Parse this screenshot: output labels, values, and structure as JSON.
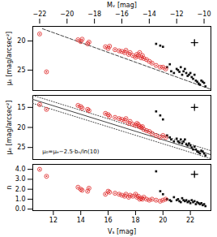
{
  "chart_data": [
    {
      "type": "scatter",
      "x2label": "Mᵥ [mag]",
      "x2lim": [
        -22.5,
        -9.5
      ],
      "x2ticks": [
        -22,
        -20,
        -18,
        -16,
        -14,
        -12,
        -10
      ],
      "ylabel": "μₛ [mag/arcsec²]",
      "xlim": [
        10.5,
        23.5
      ],
      "ylim": [
        28.5,
        17.5
      ],
      "yticks": [
        20,
        25
      ],
      "grid": false,
      "series": [
        {
          "type": "scatter",
          "marker": "square",
          "color": "#111111",
          "values": [
            [
              19.5,
              20.5
            ],
            [
              19.8,
              20.8
            ],
            [
              20.0,
              21.0
            ],
            [
              20.3,
              24.5
            ],
            [
              20.5,
              24.0
            ],
            [
              20.6,
              25.2
            ],
            [
              20.8,
              25.5
            ],
            [
              21.0,
              24.8
            ],
            [
              21.1,
              25.0
            ],
            [
              21.2,
              25.3
            ],
            [
              21.3,
              24.5
            ],
            [
              21.4,
              25.8
            ],
            [
              21.5,
              25.2
            ],
            [
              21.6,
              24.8
            ],
            [
              21.7,
              25.5
            ],
            [
              21.8,
              26.0
            ],
            [
              21.9,
              25.8
            ],
            [
              22.0,
              25.5
            ],
            [
              22.1,
              26.2
            ],
            [
              22.2,
              26.5
            ],
            [
              22.3,
              25.8
            ],
            [
              22.4,
              26.8
            ],
            [
              22.5,
              27.0
            ],
            [
              22.6,
              27.3
            ],
            [
              22.7,
              27.5
            ],
            [
              22.8,
              26.8
            ],
            [
              22.9,
              27.0
            ],
            [
              23.0,
              27.2
            ],
            [
              23.1,
              27.8
            ]
          ]
        },
        {
          "type": "scatter",
          "marker": "circle",
          "color": "#dd2222",
          "values": [
            [
              11.0,
              18.8
            ],
            [
              11.5,
              25.3
            ],
            [
              13.8,
              19.8
            ],
            [
              14.0,
              20.1
            ],
            [
              14.1,
              19.7
            ],
            [
              14.5,
              20.5
            ],
            [
              14.6,
              20.2
            ],
            [
              15.8,
              21.0
            ],
            [
              16.0,
              21.3
            ],
            [
              16.1,
              20.9
            ],
            [
              16.5,
              21.5
            ],
            [
              16.8,
              21.7
            ],
            [
              17.0,
              21.8
            ],
            [
              17.2,
              22.0
            ],
            [
              17.3,
              21.6
            ],
            [
              17.5,
              22.3
            ],
            [
              17.6,
              22.0
            ],
            [
              17.8,
              22.5
            ],
            [
              18.0,
              22.8
            ],
            [
              18.1,
              22.3
            ],
            [
              18.2,
              22.6
            ],
            [
              18.3,
              22.0
            ],
            [
              18.4,
              22.9
            ],
            [
              18.5,
              22.5
            ],
            [
              18.6,
              23.0
            ],
            [
              18.8,
              23.2
            ],
            [
              19.0,
              23.5
            ],
            [
              19.2,
              23.8
            ],
            [
              19.5,
              24.2
            ],
            [
              19.8,
              24.5
            ],
            [
              20.0,
              24.5
            ],
            [
              20.2,
              24.8
            ]
          ]
        },
        {
          "type": "line",
          "line_style": "dashed",
          "color": "#444444",
          "values": [
            [
              11.2,
              17.9
            ],
            [
              23.5,
              28.3
            ]
          ]
        },
        {
          "type": "errorbar",
          "marker": "plus",
          "color": "#000000",
          "values": [
            [
              22.3,
              20.3
            ]
          ],
          "xerr": 0.25,
          "yerr": 0.5
        }
      ]
    },
    {
      "type": "scatter",
      "ylabel": "μₑ [mag/arcsec²]",
      "xlim": [
        10.5,
        23.5
      ],
      "ylim": [
        28.0,
        12.0
      ],
      "yticks": [
        15,
        20,
        25
      ],
      "grid": false,
      "annotations": [
        {
          "text": "μ₀=μₑ−2.5·bₙ/ln(10)",
          "x": 11.2,
          "y": 26.5
        }
      ],
      "series": [
        {
          "type": "scatter",
          "marker": "square",
          "color": "#111111",
          "values": [
            [
              19.5,
              16.0
            ],
            [
              19.8,
              17.0
            ],
            [
              20.0,
              18.0
            ],
            [
              20.3,
              22.0
            ],
            [
              20.5,
              22.5
            ],
            [
              20.6,
              23.0
            ],
            [
              20.8,
              23.5
            ],
            [
              21.0,
              22.8
            ],
            [
              21.1,
              23.5
            ],
            [
              21.2,
              23.8
            ],
            [
              21.3,
              23.0
            ],
            [
              21.4,
              24.0
            ],
            [
              21.5,
              23.5
            ],
            [
              21.6,
              23.0
            ],
            [
              21.7,
              24.2
            ],
            [
              21.8,
              24.5
            ],
            [
              21.9,
              24.0
            ],
            [
              22.0,
              24.5
            ],
            [
              22.1,
              25.0
            ],
            [
              22.2,
              25.5
            ],
            [
              22.3,
              24.8
            ],
            [
              22.4,
              25.5
            ],
            [
              22.5,
              26.0
            ],
            [
              22.6,
              26.2
            ],
            [
              22.7,
              26.5
            ],
            [
              22.8,
              25.8
            ],
            [
              22.9,
              26.0
            ],
            [
              23.0,
              26.5
            ],
            [
              23.1,
              27.0
            ]
          ]
        },
        {
          "type": "scatter",
          "marker": "circle",
          "color": "#dd2222",
          "values": [
            [
              11.0,
              14.3
            ],
            [
              11.5,
              15.5
            ],
            [
              13.8,
              14.5
            ],
            [
              14.0,
              14.8
            ],
            [
              14.1,
              15.2
            ],
            [
              14.5,
              15.5
            ],
            [
              14.6,
              15.8
            ],
            [
              15.8,
              16.5
            ],
            [
              16.0,
              16.8
            ],
            [
              16.1,
              17.2
            ],
            [
              16.5,
              17.5
            ],
            [
              16.8,
              17.8
            ],
            [
              17.0,
              18.0
            ],
            [
              17.2,
              18.3
            ],
            [
              17.3,
              17.8
            ],
            [
              17.5,
              19.0
            ],
            [
              17.6,
              18.5
            ],
            [
              17.8,
              19.2
            ],
            [
              18.0,
              19.5
            ],
            [
              18.1,
              19.0
            ],
            [
              18.2,
              19.3
            ],
            [
              18.3,
              19.8
            ],
            [
              18.4,
              20.0
            ],
            [
              18.5,
              19.8
            ],
            [
              18.6,
              20.5
            ],
            [
              18.8,
              20.8
            ],
            [
              19.0,
              21.0
            ],
            [
              19.2,
              21.5
            ],
            [
              19.5,
              22.0
            ],
            [
              19.8,
              22.5
            ],
            [
              20.0,
              22.0
            ],
            [
              20.2,
              22.5
            ]
          ]
        },
        {
          "type": "line",
          "line_style": "solid",
          "color": "#444444",
          "values": [
            [
              10.5,
              13.0
            ],
            [
              23.5,
              26.8
            ]
          ]
        },
        {
          "type": "line",
          "line_style": "dotted",
          "color": "#444444",
          "values": [
            [
              10.5,
              12.0
            ],
            [
              23.5,
              25.8
            ]
          ]
        },
        {
          "type": "line",
          "line_style": "dotted",
          "color": "#444444",
          "values": [
            [
              10.5,
              14.0
            ],
            [
              23.5,
              27.8
            ]
          ]
        },
        {
          "type": "errorbar",
          "marker": "plus",
          "color": "#000000",
          "values": [
            [
              22.3,
              15.0
            ]
          ],
          "xerr": 0.25,
          "yerr": 0.5
        }
      ]
    },
    {
      "type": "scatter",
      "xlabel": "Vₛ [mag]",
      "ylabel": "n",
      "xlim": [
        10.5,
        23.5
      ],
      "xticks": [
        12,
        14,
        16,
        18,
        20,
        22
      ],
      "ylim": [
        -0.15,
        4.5
      ],
      "yticks": [
        0,
        1,
        2,
        3,
        4
      ],
      "grid": false,
      "series": [
        {
          "type": "scatter",
          "marker": "square",
          "color": "#111111",
          "values": [
            [
              19.5,
              3.8
            ],
            [
              19.8,
              1.8
            ],
            [
              20.0,
              1.5
            ],
            [
              20.3,
              1.0
            ],
            [
              20.5,
              0.9
            ],
            [
              20.6,
              0.8
            ],
            [
              20.8,
              1.2
            ],
            [
              21.0,
              0.9
            ],
            [
              21.1,
              1.0
            ],
            [
              21.2,
              0.8
            ],
            [
              21.3,
              0.7
            ],
            [
              21.4,
              1.1
            ],
            [
              21.5,
              0.9
            ],
            [
              21.6,
              0.8
            ],
            [
              21.7,
              0.9
            ],
            [
              21.8,
              0.7
            ],
            [
              21.9,
              0.8
            ],
            [
              22.0,
              0.6
            ],
            [
              22.1,
              0.9
            ],
            [
              22.2,
              0.7
            ],
            [
              22.3,
              0.8
            ],
            [
              22.4,
              0.5
            ],
            [
              22.5,
              0.7
            ],
            [
              22.6,
              0.6
            ],
            [
              22.7,
              0.5
            ],
            [
              22.8,
              0.6
            ],
            [
              22.9,
              0.4
            ],
            [
              23.0,
              0.5
            ],
            [
              23.1,
              0.3
            ]
          ]
        },
        {
          "type": "scatter",
          "marker": "circle",
          "color": "#dd2222",
          "values": [
            [
              11.0,
              4.0
            ],
            [
              11.5,
              3.3
            ],
            [
              13.8,
              2.2
            ],
            [
              14.0,
              2.0
            ],
            [
              14.1,
              1.9
            ],
            [
              14.5,
              1.8
            ],
            [
              14.6,
              2.1
            ],
            [
              15.8,
              1.5
            ],
            [
              16.0,
              1.8
            ],
            [
              16.1,
              1.7
            ],
            [
              16.5,
              1.6
            ],
            [
              16.8,
              1.5
            ],
            [
              17.0,
              1.4
            ],
            [
              17.2,
              1.3
            ],
            [
              17.3,
              1.5
            ],
            [
              17.5,
              1.2
            ],
            [
              17.6,
              1.4
            ],
            [
              17.8,
              1.3
            ],
            [
              18.0,
              1.5
            ],
            [
              18.1,
              1.2
            ],
            [
              18.2,
              1.3
            ],
            [
              18.3,
              1.0
            ],
            [
              18.4,
              1.1
            ],
            [
              18.5,
              1.0
            ],
            [
              18.6,
              1.2
            ],
            [
              18.8,
              1.0
            ],
            [
              19.0,
              0.9
            ],
            [
              19.2,
              1.0
            ],
            [
              19.5,
              0.9
            ],
            [
              19.8,
              0.8
            ],
            [
              20.0,
              0.9
            ],
            [
              20.2,
              1.0
            ]
          ]
        },
        {
          "type": "errorbar",
          "marker": "plus",
          "color": "#000000",
          "values": [
            [
              22.3,
              3.5
            ]
          ],
          "xerr": 0.25,
          "yerr": 0.3
        }
      ]
    }
  ]
}
